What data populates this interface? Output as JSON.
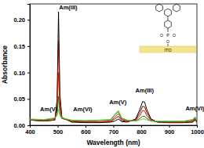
{
  "chart_data": {
    "type": "line",
    "x_label": "Wavelength (nm)",
    "y_label": "Absorbance",
    "x": [
      400,
      450,
      490,
      498,
      503,
      508,
      515,
      550,
      600,
      650,
      690,
      705,
      718,
      730,
      750,
      780,
      795,
      805,
      812,
      820,
      835,
      860,
      900,
      950,
      985,
      993,
      1000
    ],
    "series": [
      {
        "color": "#000000",
        "values": [
          0.01,
          0.008,
          0.01,
          0.05,
          0.215,
          0.06,
          0.015,
          0.006,
          0.005,
          0.005,
          0.006,
          0.008,
          0.012,
          0.007,
          0.006,
          0.012,
          0.03,
          0.045,
          0.044,
          0.03,
          0.012,
          0.006,
          0.005,
          0.005,
          0.006,
          0.01,
          0.006
        ]
      },
      {
        "color": "#8b0000",
        "values": [
          0.01,
          0.008,
          0.01,
          0.04,
          0.16,
          0.045,
          0.014,
          0.007,
          0.006,
          0.006,
          0.007,
          0.012,
          0.017,
          0.009,
          0.007,
          0.01,
          0.024,
          0.036,
          0.035,
          0.024,
          0.01,
          0.006,
          0.005,
          0.005,
          0.007,
          0.011,
          0.007
        ]
      },
      {
        "color": "#d42a00",
        "values": [
          0.01,
          0.009,
          0.011,
          0.03,
          0.1,
          0.032,
          0.013,
          0.008,
          0.007,
          0.007,
          0.008,
          0.015,
          0.022,
          0.011,
          0.008,
          0.009,
          0.018,
          0.028,
          0.027,
          0.018,
          0.009,
          0.006,
          0.006,
          0.006,
          0.008,
          0.013,
          0.008
        ]
      },
      {
        "color": "#1f6b1f",
        "values": [
          0.011,
          0.01,
          0.013,
          0.022,
          0.055,
          0.022,
          0.013,
          0.009,
          0.008,
          0.009,
          0.01,
          0.019,
          0.026,
          0.013,
          0.009,
          0.008,
          0.013,
          0.017,
          0.017,
          0.013,
          0.008,
          0.007,
          0.007,
          0.007,
          0.01,
          0.015,
          0.009
        ]
      },
      {
        "color": "#66cc33",
        "values": [
          0.012,
          0.011,
          0.014,
          0.018,
          0.03,
          0.018,
          0.014,
          0.01,
          0.009,
          0.01,
          0.011,
          0.021,
          0.028,
          0.014,
          0.01,
          0.008,
          0.01,
          0.012,
          0.012,
          0.01,
          0.008,
          0.008,
          0.008,
          0.008,
          0.011,
          0.016,
          0.01
        ]
      }
    ],
    "xlim": [
      400,
      1000
    ],
    "ylim": [
      0,
      0.23
    ],
    "xticks": [
      400,
      500,
      600,
      700,
      800,
      900,
      1000
    ],
    "yticks": [
      {
        "value": 0,
        "label": "0.00"
      },
      {
        "value": 0.05,
        "label": "0.05"
      },
      {
        "value": 0.1,
        "label": "0.10"
      },
      {
        "value": 0.15,
        "label": "0.15"
      },
      {
        "value": 0.2,
        "label": "0.20"
      }
    ],
    "annotations": [
      {
        "text": "Am(III)",
        "x": 505,
        "y": 0.215
      },
      {
        "text": "Am(V)",
        "x": 468,
        "y": 0.022
      },
      {
        "text": "Am(VI)",
        "x": 590,
        "y": 0.022
      },
      {
        "text": "Am(V)",
        "x": 716,
        "y": 0.036
      },
      {
        "text": "Am(III)",
        "x": 812,
        "y": 0.058
      },
      {
        "text": "Am(VI)",
        "x": 993,
        "y": 0.024
      }
    ],
    "inset_labels": [
      "P",
      "O",
      "O",
      "O",
      "ITO"
    ]
  }
}
